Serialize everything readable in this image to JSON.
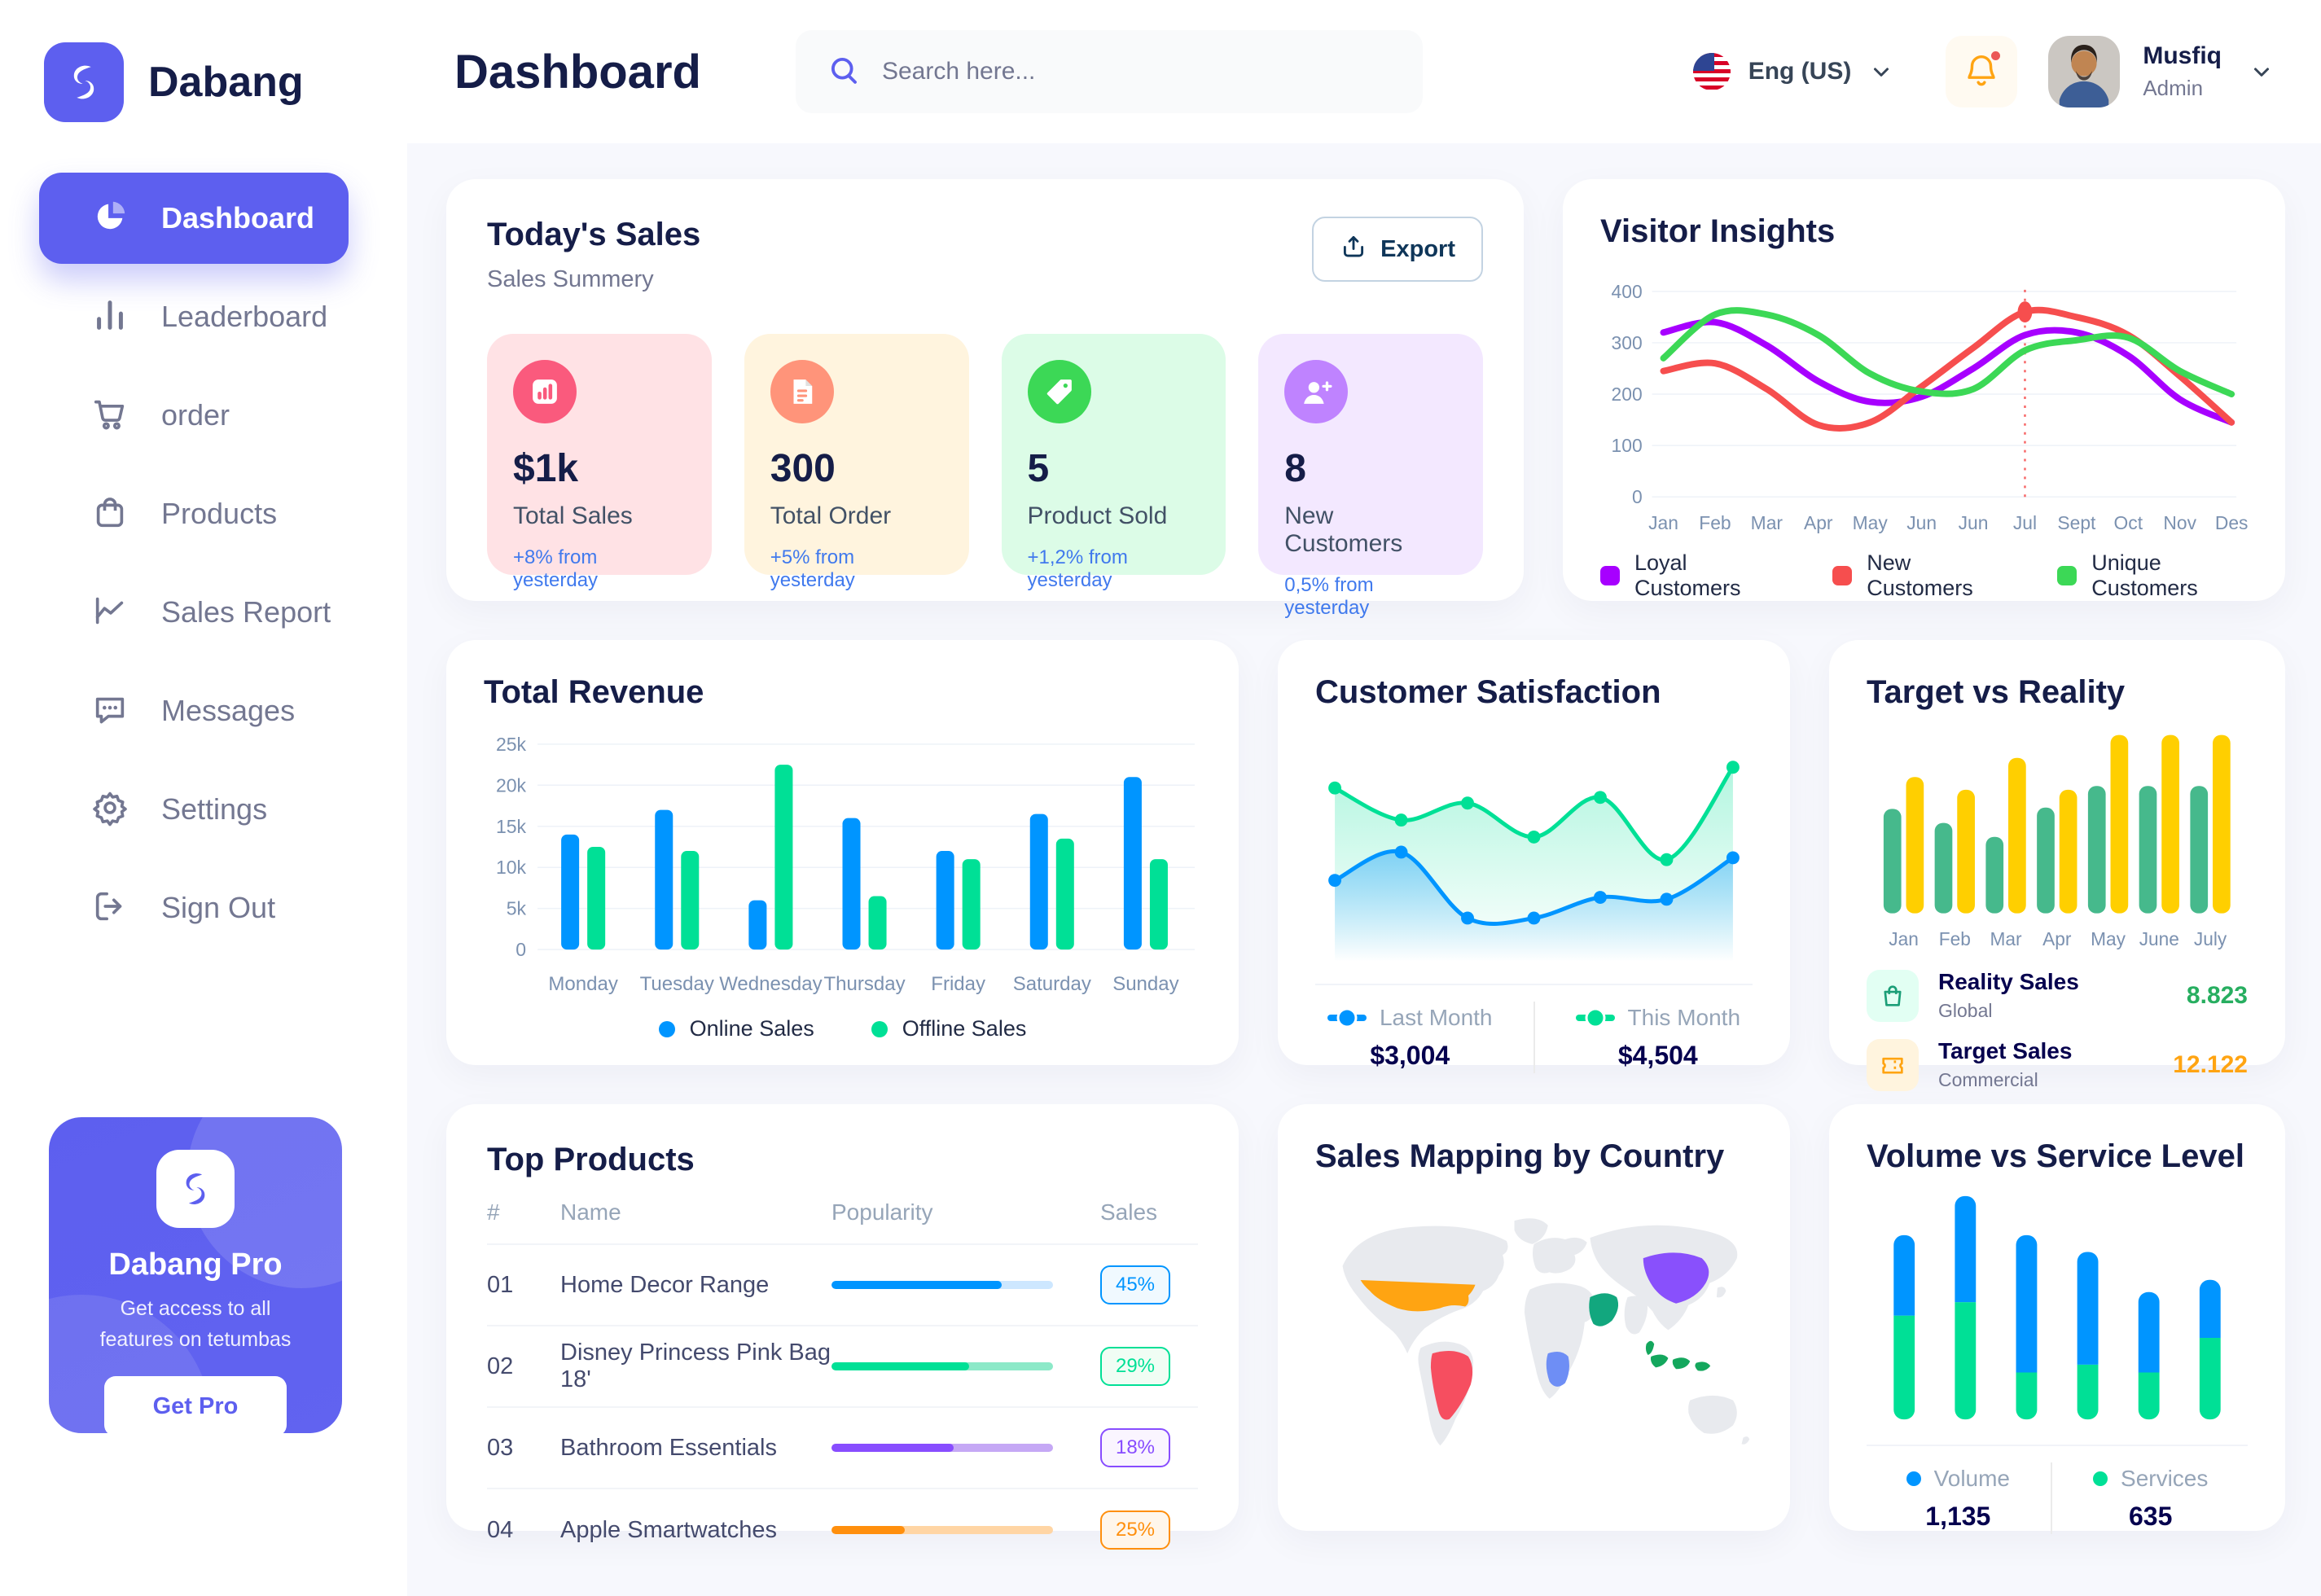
{
  "app": {
    "brand": "Dabang"
  },
  "header": {
    "page_title": "Dashboard",
    "search_placeholder": "Search here...",
    "language_label": "Eng (US)",
    "user": {
      "name": "Musfiq",
      "role": "Admin"
    }
  },
  "sidebar": {
    "items": [
      {
        "label": "Dashboard",
        "icon": "pie-chart-icon",
        "active": true
      },
      {
        "label": "Leaderboard",
        "icon": "bar-chart-icon",
        "active": false
      },
      {
        "label": "order",
        "icon": "cart-icon",
        "active": false
      },
      {
        "label": "Products",
        "icon": "bag-icon",
        "active": false
      },
      {
        "label": "Sales Report",
        "icon": "line-chart-icon",
        "active": false
      },
      {
        "label": "Messages",
        "icon": "message-icon",
        "active": false
      },
      {
        "label": "Settings",
        "icon": "gear-icon",
        "active": false
      },
      {
        "label": "Sign Out",
        "icon": "sign-out-icon",
        "active": false
      }
    ],
    "promo": {
      "title": "Dabang Pro",
      "description": "Get access to all features on tetumbas",
      "button_label": "Get Pro"
    }
  },
  "todays_sales": {
    "title": "Today's Sales",
    "subtitle": "Sales Summery",
    "export_label": "Export",
    "cards": [
      {
        "value": "$1k",
        "label": "Total Sales",
        "delta": "+8% from yesterday",
        "bg": "#FFE2E5",
        "icon_color": "#FA5A7D",
        "icon": "stat-chart-icon"
      },
      {
        "value": "300",
        "label": "Total Order",
        "delta": "+5% from yesterday",
        "bg": "#FFF4DE",
        "icon_color": "#FF947A",
        "icon": "stat-file-icon"
      },
      {
        "value": "5",
        "label": "Product Sold",
        "delta": "+1,2% from yesterday",
        "bg": "#DCFCE7",
        "icon_color": "#3CD856",
        "icon": "stat-tag-icon"
      },
      {
        "value": "8",
        "label": "New Customers",
        "delta": "0,5% from yesterday",
        "bg": "#F3E8FF",
        "icon_color": "#BF83FF",
        "icon": "stat-user-plus-icon"
      }
    ]
  },
  "chart_data": [
    {
      "id": "visitor_insights",
      "type": "line",
      "title": "Visitor Insights",
      "x": [
        "Jan",
        "Feb",
        "Mar",
        "Apr",
        "May",
        "Jun",
        "Jun",
        "Jul",
        "Sept",
        "Oct",
        "Nov",
        "Des"
      ],
      "ylim": [
        0,
        400
      ],
      "yticks": [
        0,
        100,
        200,
        300,
        400
      ],
      "grid": true,
      "legend_position": "bottom",
      "series": [
        {
          "name": "Loyal Customers",
          "color": "#A700FF",
          "values": [
            320,
            340,
            295,
            225,
            185,
            195,
            250,
            315,
            320,
            275,
            190,
            145
          ]
        },
        {
          "name": "New Customers",
          "color": "#F64E4E",
          "values": [
            245,
            260,
            210,
            140,
            145,
            215,
            290,
            360,
            350,
            315,
            235,
            145
          ]
        },
        {
          "name": "Unique Customers",
          "color": "#3CD856",
          "values": [
            270,
            355,
            355,
            315,
            240,
            205,
            210,
            285,
            305,
            310,
            245,
            200
          ]
        }
      ],
      "annotation": {
        "x_index": 7,
        "x_label": "Jul",
        "series": "New Customers",
        "value": 360,
        "style": "red-dashed-vertical-line-with-marker"
      }
    },
    {
      "id": "total_revenue",
      "type": "bar",
      "title": "Total Revenue",
      "categories": [
        "Monday",
        "Tuesday",
        "Wednesday",
        "Thursday",
        "Friday",
        "Saturday",
        "Sunday"
      ],
      "ylabel_unit": "k",
      "ylim": [
        0,
        25
      ],
      "yticks_labels": [
        "0",
        "5k",
        "10k",
        "15k",
        "20k",
        "25k"
      ],
      "grid": true,
      "legend_position": "bottom",
      "series": [
        {
          "name": "Online Sales",
          "color": "#0095FF",
          "values": [
            14,
            17,
            6,
            16,
            12,
            16.5,
            21
          ]
        },
        {
          "name": "Offline Sales",
          "color": "#00E096",
          "values": [
            12.5,
            12,
            22.5,
            6.5,
            11,
            13.5,
            11
          ]
        }
      ]
    },
    {
      "id": "customer_satisfaction",
      "type": "area",
      "title": "Customer Satisfaction",
      "ylim": [
        0,
        115
      ],
      "legend_position": "bottom",
      "series": [
        {
          "name": "Last Month",
          "color": "#0095FF",
          "total": "$3,004",
          "values": [
            38,
            53,
            18,
            18,
            29,
            28,
            50
          ]
        },
        {
          "name": "This Month",
          "color": "#00E096",
          "total": "$4,504",
          "values": [
            87,
            70,
            79,
            61,
            82,
            49,
            98
          ]
        }
      ]
    },
    {
      "id": "target_vs_reality",
      "type": "bar",
      "title": "Target vs Reality",
      "categories": [
        "Jan",
        "Feb",
        "Mar",
        "Apr",
        "May",
        "June",
        "July"
      ],
      "ylim": [
        0,
        14
      ],
      "legend_position": "bottom",
      "series": [
        {
          "name": "Reality Sales",
          "sub": "Global",
          "color": "#46B98C",
          "value_label": "8.823",
          "value_color": "#27AE60",
          "icon": "shopping-bag-icon",
          "icon_bg": "#E2FFF3",
          "values": [
            8.2,
            7.1,
            6,
            8.3,
            10,
            10,
            10
          ]
        },
        {
          "name": "Target Sales",
          "sub": "Commercial",
          "color": "#FFCF00",
          "value_label": "12.122",
          "value_color": "#FFA412",
          "icon": "ticket-icon",
          "icon_bg": "#FFF4DE",
          "values": [
            10.7,
            9.7,
            12.2,
            9.7,
            14,
            14,
            14
          ]
        }
      ]
    },
    {
      "id": "top_products",
      "type": "table",
      "title": "Top Products",
      "headers": [
        "#",
        "Name",
        "Popularity",
        "Sales"
      ],
      "rows": [
        {
          "num": "01",
          "name": "Home Decor Range",
          "popularity_pct": 77,
          "sales": "45%",
          "color": "#0095FF",
          "track_color": "#CDE7FF",
          "badge_bg": "#F0F9FF"
        },
        {
          "num": "02",
          "name": "Disney Princess Pink Bag 18'",
          "popularity_pct": 62,
          "sales": "29%",
          "color": "#00E096",
          "track_color": "#8CE9C8",
          "badge_bg": "#F0FDF4"
        },
        {
          "num": "03",
          "name": "Bathroom Essentials",
          "popularity_pct": 55,
          "sales": "18%",
          "color": "#884DFF",
          "track_color": "#C5A8F5",
          "badge_bg": "#FAF5FF"
        },
        {
          "num": "04",
          "name": "Apple Smartwatches",
          "popularity_pct": 33,
          "sales": "25%",
          "color": "#FF8F0D",
          "track_color": "#FFD5A4",
          "badge_bg": "#FFF6EB"
        }
      ]
    },
    {
      "id": "sales_mapping",
      "type": "map",
      "title": "Sales Mapping by Country",
      "countries": [
        {
          "name": "United States",
          "color": "#FFA412"
        },
        {
          "name": "Brazil",
          "color": "#F64E60"
        },
        {
          "name": "Saudi Arabia",
          "color": "#12A77E"
        },
        {
          "name": "DR Congo",
          "color": "#6E8EF5"
        },
        {
          "name": "China",
          "color": "#8950FC"
        },
        {
          "name": "Indonesia",
          "color": "#14A75D"
        }
      ]
    },
    {
      "id": "volume_service",
      "type": "stacked-bar",
      "title": "Volume vs Service Level",
      "legend_position": "bottom",
      "series": [
        {
          "name": "Volume",
          "color": "#0095FF",
          "total": "1,135",
          "values": [
            360,
            475,
            615,
            505,
            360,
            260
          ]
        },
        {
          "name": "Services",
          "color": "#00E096",
          "total": "635",
          "values": [
            465,
            525,
            210,
            245,
            210,
            365
          ]
        }
      ]
    }
  ],
  "colors": {
    "primary": "#5D5FEF",
    "title": "#151D48",
    "muted": "#737791",
    "axis": "#7B91B0",
    "bell": "#FFA412",
    "alert_dot": "#EB5757"
  }
}
